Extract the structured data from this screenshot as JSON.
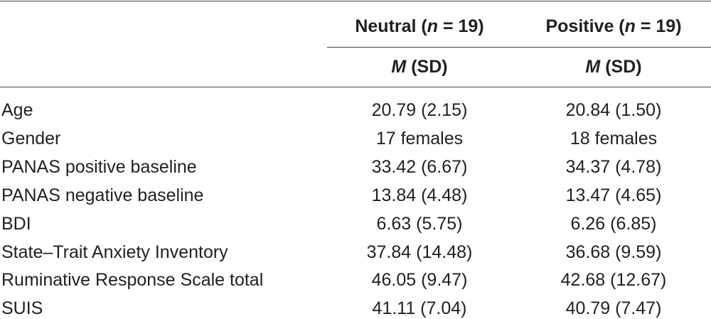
{
  "table": {
    "header": [
      [
        [
          "Neutral (",
          "n",
          " = 19)"
        ],
        [
          "Positive (",
          "n",
          " = 19)"
        ]
      ],
      [
        [
          "M",
          " (SD)"
        ],
        [
          "M",
          " (SD)"
        ]
      ]
    ],
    "rows": [
      [
        "Age",
        "20.79 (2.15)",
        "20.84 (1.50)"
      ],
      [
        "Gender",
        "17 females",
        "18 females"
      ],
      [
        "PANAS positive baseline",
        "33.42 (6.67)",
        "34.37 (4.78)"
      ],
      [
        "PANAS negative baseline",
        "13.84 (4.48)",
        "13.47 (4.65)"
      ],
      [
        "BDI",
        "6.63 (5.75)",
        "6.26 (6.85)"
      ],
      [
        "State–Trait Anxiety Inventory",
        "37.84 (14.48)",
        "36.68 (9.59)"
      ],
      [
        "Ruminative Response Scale total",
        "46.05 (9.47)",
        "42.68 (12.67)"
      ],
      [
        "SUIS",
        "41.11 (7.04)",
        "40.79 (7.47)"
      ]
    ]
  }
}
